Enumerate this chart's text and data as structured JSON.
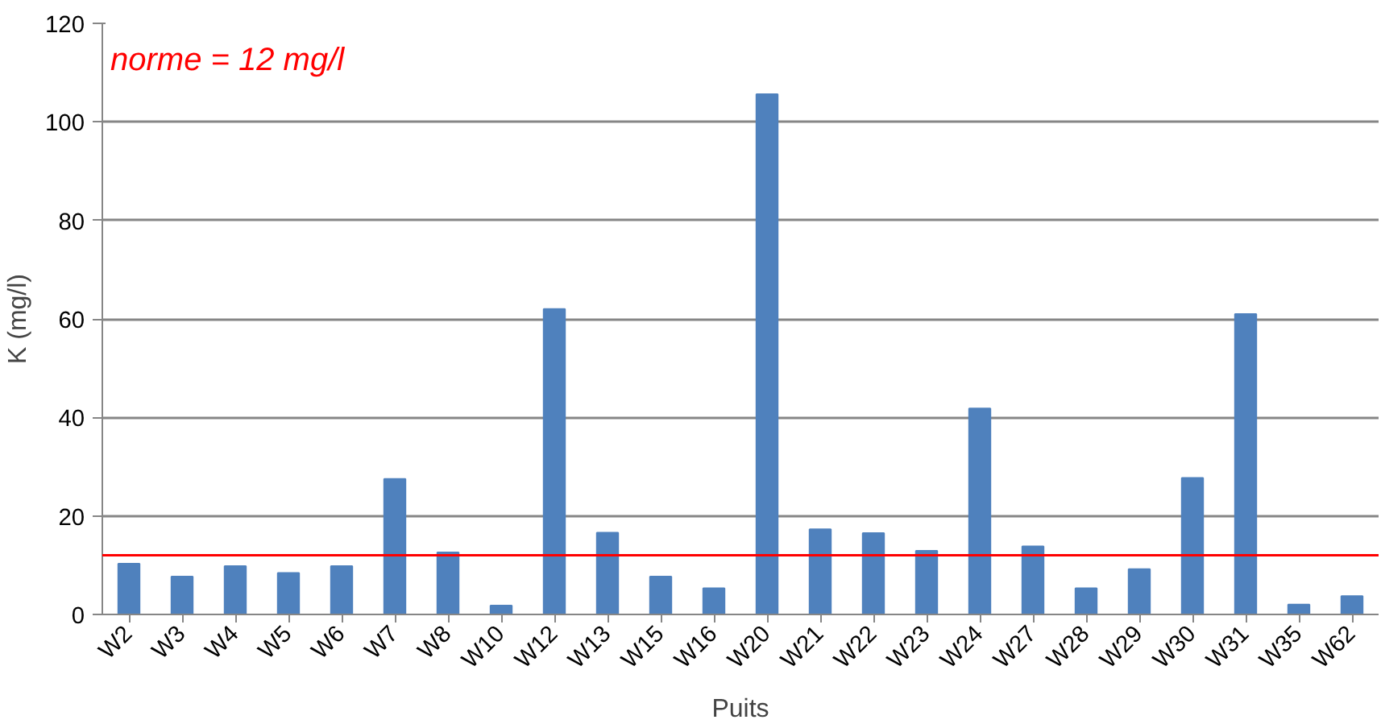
{
  "chart_data": {
    "type": "bar",
    "xlabel": "Puits",
    "ylabel": "K (mg/l)",
    "categories": [
      "W2",
      "W3",
      "W4",
      "W5",
      "W6",
      "W7",
      "W8",
      "W10",
      "W12",
      "W13",
      "W15",
      "W16",
      "W20",
      "W21",
      "W22",
      "W23",
      "W24",
      "W27",
      "W28",
      "W29",
      "W30",
      "W31",
      "W35",
      "W62"
    ],
    "series": [
      {
        "color": "#4f81bd",
        "values": [
          10.3,
          7.7,
          9.8,
          8.4,
          9.8,
          27.5,
          12.6,
          1.8,
          62,
          16.6,
          7.7,
          5.3,
          105.6,
          17.3,
          16.5,
          12.9,
          41.8,
          13.8,
          5.3,
          9.2,
          27.7,
          61,
          2,
          3.7
        ]
      }
    ],
    "ylim": [
      0,
      120
    ],
    "yticks": [
      0,
      20,
      40,
      60,
      80,
      100,
      120
    ],
    "grid": "y",
    "ref_lines": [
      {
        "axis": "y",
        "value": 12,
        "label": "norme = 12 mg/l",
        "color": "#ff0000"
      }
    ]
  }
}
